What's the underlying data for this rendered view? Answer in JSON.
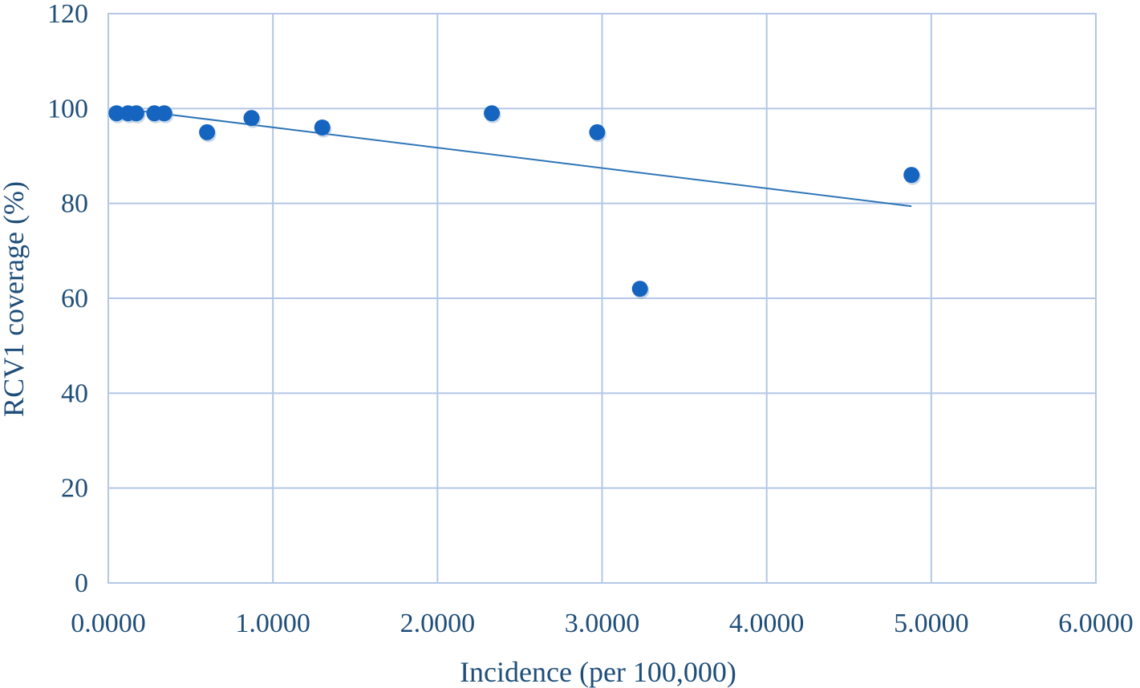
{
  "chart_data": {
    "type": "scatter",
    "title": "",
    "xlabel": "Incidence (per 100,000)",
    "ylabel": "RCV1 coverage (%)",
    "xlim": [
      0,
      6
    ],
    "ylim": [
      0,
      120
    ],
    "x_ticks": [
      "0.0000",
      "1.0000",
      "2.0000",
      "3.0000",
      "4.0000",
      "5.0000",
      "6.0000"
    ],
    "y_ticks": [
      "0",
      "20",
      "40",
      "60",
      "80",
      "100",
      "120"
    ],
    "x_tick_values": [
      0,
      1,
      2,
      3,
      4,
      5,
      6
    ],
    "y_tick_values": [
      0,
      20,
      40,
      60,
      80,
      100,
      120
    ],
    "grid": true,
    "legend": "none",
    "series": [
      {
        "marker_color": "#1565c0",
        "points": [
          {
            "x": 0.05,
            "y": 99
          },
          {
            "x": 0.12,
            "y": 99
          },
          {
            "x": 0.17,
            "y": 99
          },
          {
            "x": 0.28,
            "y": 99
          },
          {
            "x": 0.34,
            "y": 99
          },
          {
            "x": 0.6,
            "y": 95
          },
          {
            "x": 0.87,
            "y": 98
          },
          {
            "x": 1.3,
            "y": 96
          },
          {
            "x": 2.33,
            "y": 99
          },
          {
            "x": 2.97,
            "y": 95
          },
          {
            "x": 3.23,
            "y": 62
          },
          {
            "x": 4.88,
            "y": 86
          }
        ]
      }
    ],
    "trendline": {
      "type": "linear",
      "color": "#2e75b6",
      "start": {
        "x": 0.05,
        "y": 100.1
      },
      "end": {
        "x": 4.88,
        "y": 79.4
      }
    }
  }
}
